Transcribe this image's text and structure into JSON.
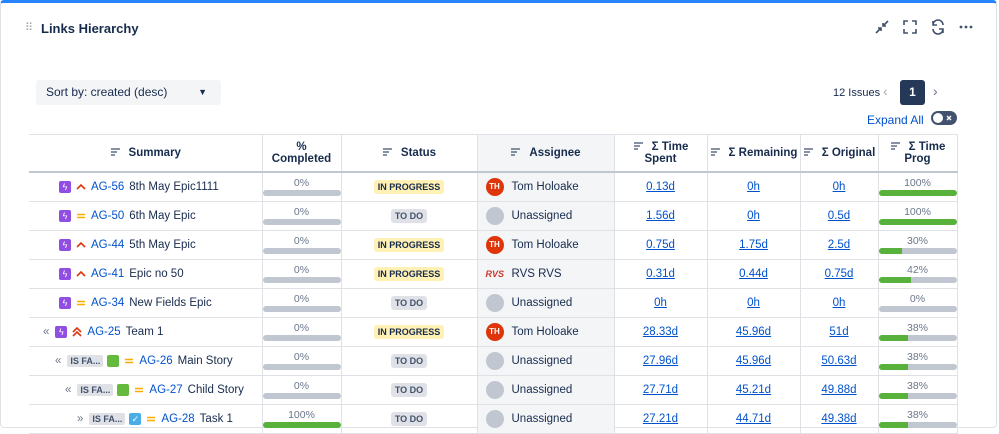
{
  "header": {
    "title": "Links Hierarchy"
  },
  "toolbar": {
    "sort": "Sort by: created (desc)",
    "issues": "12 Issues",
    "page": "1",
    "expand": "Expand All"
  },
  "table": {
    "columns": [
      "Summary",
      "%",
      "Completed",
      "Status",
      "Assignee",
      "Σ Time Spent",
      "Σ Remaining",
      "Σ Original",
      "Σ Time Prog"
    ],
    "rows": [
      {
        "key": "AG-56",
        "summary": "8th May Epic1111",
        "completed": {
          "value": 0,
          "label": "0%"
        },
        "status": "IN PROGRESS",
        "avatar": "TH",
        "assignee": "Tom Holoake",
        "spent": "0.13d",
        "remaining": "0h",
        "original": "0h",
        "progress": {
          "value": 100,
          "label": "100%"
        }
      },
      {
        "key": "AG-50",
        "summary": "6th May Epic",
        "completed": {
          "value": 0,
          "label": "0%"
        },
        "status": "TO DO",
        "assignee": "Unassigned",
        "spent": "1.56d",
        "remaining": "0h",
        "original": "0.5d",
        "progress": {
          "value": 100,
          "label": "100%"
        }
      },
      {
        "key": "AG-44",
        "summary": "5th May Epic",
        "completed": {
          "value": 0,
          "label": "0%"
        },
        "status": "IN PROGRESS",
        "avatar": "TH",
        "assignee": "Tom Holoake",
        "spent": "0.75d",
        "remaining": "1.75d",
        "original": "2.5d",
        "progress": {
          "value": 30,
          "label": "30%"
        }
      },
      {
        "key": "AG-41",
        "summary": "Epic no 50",
        "completed": {
          "value": 0,
          "label": "0%"
        },
        "status": "IN PROGRESS",
        "avatar": "RVS",
        "assignee": "RVS RVS",
        "spent": "0.31d",
        "remaining": "0.44d",
        "original": "0.75d",
        "progress": {
          "value": 42,
          "label": "42%"
        }
      },
      {
        "key": "AG-34",
        "summary": "New Fields Epic",
        "completed": {
          "value": 0,
          "label": "0%"
        },
        "status": "TO DO",
        "assignee": "Unassigned",
        "spent": "0h",
        "remaining": "0h",
        "original": "0h",
        "progress": {
          "value": 0,
          "label": "0%"
        }
      },
      {
        "marker": "«",
        "key": "AG-25",
        "summary": "Team 1",
        "completed": {
          "value": 0,
          "label": "0%"
        },
        "status": "IN PROGRESS",
        "avatar": "TH",
        "assignee": "Tom Holoake",
        "spent": "28.33d",
        "remaining": "45.96d",
        "original": "51d",
        "progress": {
          "value": 38,
          "label": "38%"
        }
      },
      {
        "marker": "«",
        "link": "IS FA...",
        "key": "AG-26",
        "summary": "Main Story",
        "completed": {
          "value": 0,
          "label": "0%"
        },
        "status": "TO DO",
        "assignee": "Unassigned",
        "spent": "27.96d",
        "remaining": "45.96d",
        "original": "50.63d",
        "progress": {
          "value": 38,
          "label": "38%"
        }
      },
      {
        "marker": "«",
        "link": "IS FA...",
        "key": "AG-27",
        "summary": "Child Story",
        "completed": {
          "value": 0,
          "label": "0%"
        },
        "status": "TO DO",
        "assignee": "Unassigned",
        "spent": "27.71d",
        "remaining": "45.21d",
        "original": "49.88d",
        "progress": {
          "value": 38,
          "label": "38%"
        }
      },
      {
        "marker": "»",
        "link": "IS FA...",
        "key": "AG-28",
        "summary": "Task 1",
        "completed": {
          "value": 100,
          "label": "100%"
        },
        "status": "TO DO",
        "assignee": "Unassigned",
        "spent": "27.21d",
        "remaining": "44.71d",
        "original": "49.38d",
        "progress": {
          "value": 38,
          "label": "38%"
        }
      }
    ]
  }
}
